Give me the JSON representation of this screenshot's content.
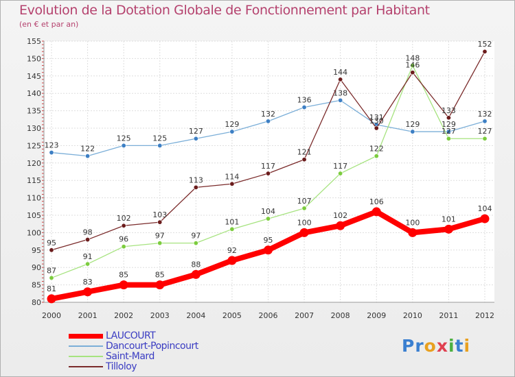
{
  "title": "Evolution de la Dotation Globale de Fonctionnement par Habitant",
  "subtitle": "(en € et par an)",
  "logo": "Proxiti",
  "chart_data": {
    "type": "line",
    "title": "Evolution de la Dotation Globale de Fonctionnement par Habitant",
    "ylabel": "(en € et par an)",
    "xlabel": "",
    "ylim": [
      80,
      155
    ],
    "yticks": [
      80,
      85,
      90,
      95,
      100,
      105,
      110,
      115,
      120,
      125,
      130,
      135,
      140,
      145,
      150,
      155
    ],
    "categories": [
      "2000",
      "2001",
      "2002",
      "2003",
      "2004",
      "2005",
      "2006",
      "2007",
      "2008",
      "2009",
      "2010",
      "2011",
      "2012"
    ],
    "grid": true,
    "legend_position": "bottom-left",
    "series": [
      {
        "name": "LAUCOURT",
        "color": "#ff0000",
        "marker": "#ff0000",
        "style": "thick",
        "values": [
          81,
          83,
          85,
          85,
          88,
          92,
          95,
          100,
          102,
          106,
          100,
          101,
          104
        ]
      },
      {
        "name": "Dancourt-Popincourt",
        "color": "#7aaed8",
        "marker": "#3d7fc4",
        "style": "thin",
        "values": [
          123,
          122,
          125,
          125,
          127,
          129,
          132,
          136,
          138,
          131,
          129,
          129,
          132
        ]
      },
      {
        "name": "Saint-Mard",
        "color": "#a6e37f",
        "marker": "#7ccc3e",
        "style": "thin",
        "values": [
          87,
          91,
          96,
          97,
          97,
          101,
          104,
          107,
          117,
          122,
          148,
          127,
          127
        ]
      },
      {
        "name": "Tilloloy",
        "color": "#7a2a2a",
        "marker": "#6b1c1c",
        "style": "thin",
        "values": [
          95,
          98,
          102,
          103,
          113,
          114,
          117,
          121,
          144,
          130,
          146,
          133,
          152
        ]
      }
    ]
  }
}
